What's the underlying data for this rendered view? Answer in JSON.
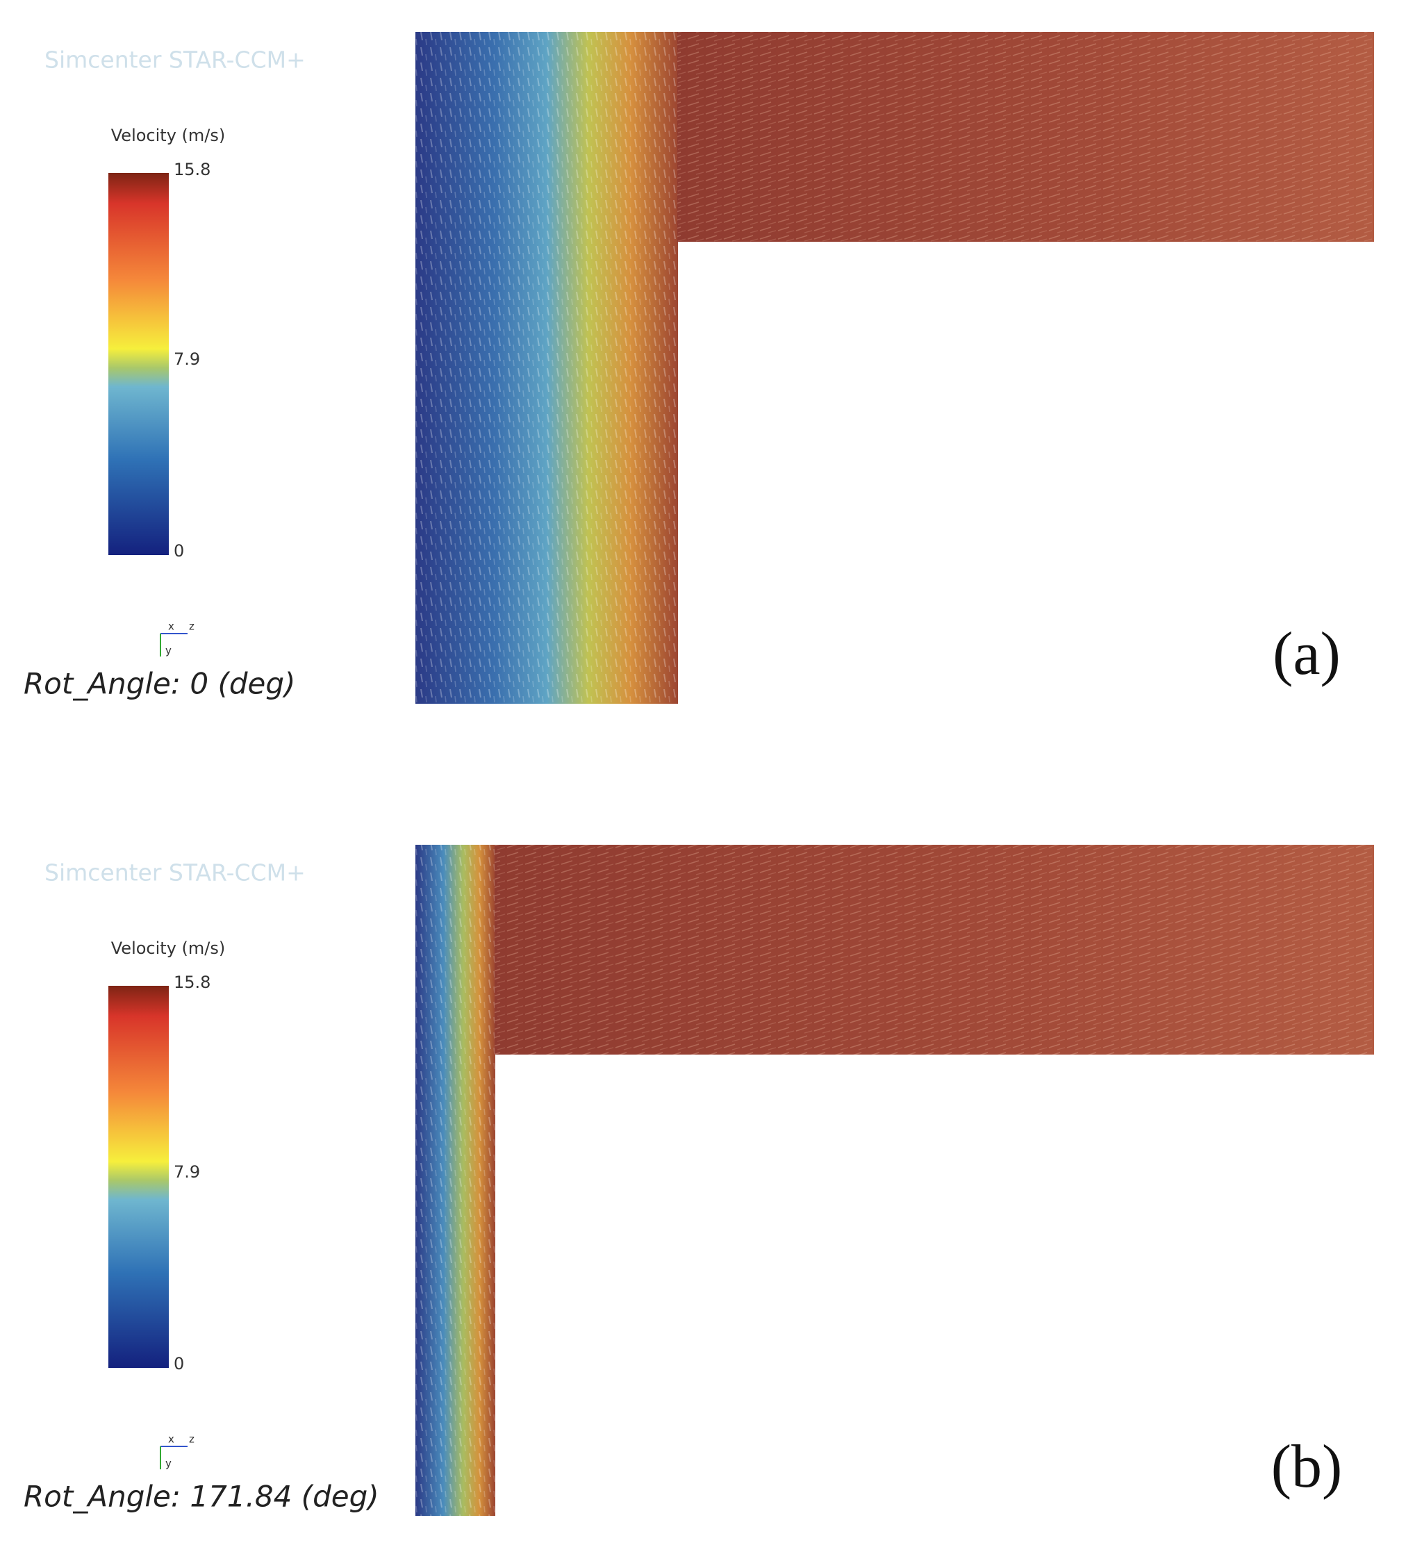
{
  "panels": [
    {
      "watermark": "Simcenter STAR-CCM+",
      "legend": {
        "title": "Velocity (m/s)",
        "ticks": [
          15.8,
          7.9,
          0
        ]
      },
      "axes": {
        "x": "x",
        "z": "z",
        "y": "y"
      },
      "caption": "Rot_Angle: 0 (deg)",
      "label": "(a)"
    },
    {
      "watermark": "Simcenter STAR-CCM+",
      "legend": {
        "title": "Velocity (m/s)",
        "ticks": [
          15.8,
          7.9,
          0
        ]
      },
      "axes": {
        "x": "x",
        "z": "z",
        "y": "y"
      },
      "caption": "Rot_Angle: 171.84 (deg)",
      "label": "(b)"
    }
  ]
}
